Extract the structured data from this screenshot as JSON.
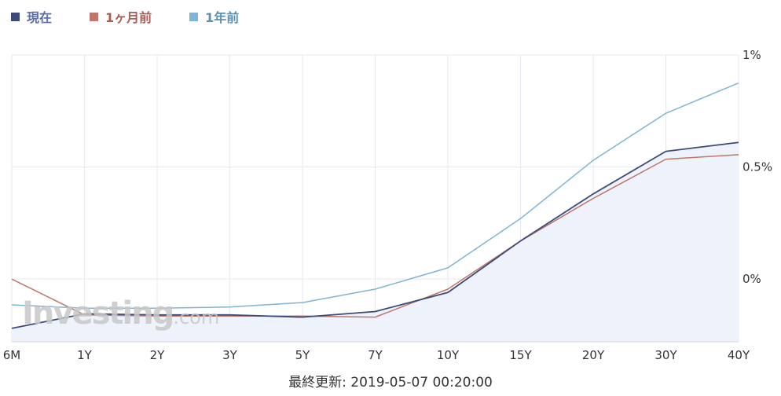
{
  "legend": {
    "items": [
      {
        "label": "現在",
        "color": "#3c4a7a",
        "text_color": "#5b6ea8"
      },
      {
        "label": "1ヶ月前",
        "color": "#c0756a",
        "text_color": "#a85c52"
      },
      {
        "label": "1年前",
        "color": "#7fb4d4",
        "text_color": "#5a8fb0"
      }
    ]
  },
  "watermark": {
    "main": "Investing",
    "suffix": ".com"
  },
  "footer": {
    "text": "最終更新: 2019-05-07 00:20:00"
  },
  "chart_data": {
    "type": "line",
    "categories": [
      "6M",
      "1Y",
      "2Y",
      "3Y",
      "5Y",
      "7Y",
      "10Y",
      "15Y",
      "20Y",
      "30Y",
      "40Y"
    ],
    "y_ticks": [
      {
        "value": 1.0,
        "label": "1%"
      },
      {
        "value": 0.5,
        "label": "0.5%"
      },
      {
        "value": 0.0,
        "label": "0%"
      }
    ],
    "ylim": [
      -0.28,
      1.0
    ],
    "grid": true,
    "legend_position": "top-left",
    "series": [
      {
        "name": "現在",
        "color": "#3c4a7a",
        "fill": "#eef3fb",
        "values": [
          -0.22,
          -0.155,
          -0.16,
          -0.16,
          -0.17,
          -0.145,
          -0.06,
          0.17,
          0.38,
          0.57,
          0.61
        ]
      },
      {
        "name": "1ヶ月前",
        "color": "#c0756a",
        "values": [
          0.0,
          -0.16,
          -0.165,
          -0.165,
          -0.165,
          -0.17,
          -0.045,
          0.17,
          0.36,
          0.535,
          0.555
        ]
      },
      {
        "name": "1年前",
        "color": "#7fb4d4",
        "values": [
          -0.115,
          -0.13,
          -0.13,
          -0.125,
          -0.105,
          -0.045,
          0.05,
          0.27,
          0.53,
          0.74,
          0.875
        ]
      }
    ]
  }
}
